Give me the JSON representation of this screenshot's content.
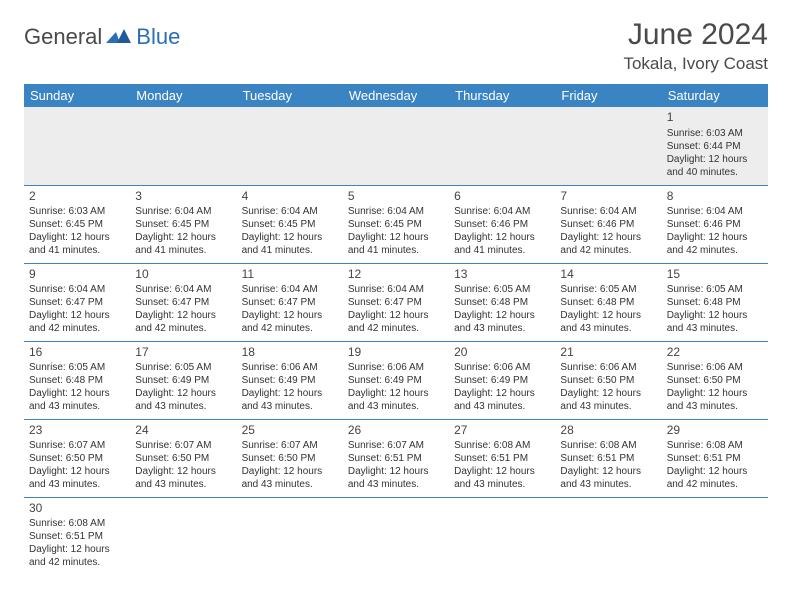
{
  "header": {
    "logo_general": "General",
    "logo_blue": "Blue",
    "month_title": "June 2024",
    "location": "Tokala, Ivory Coast"
  },
  "colors": {
    "header_bg": "#3b84c4",
    "header_text": "#ffffff",
    "cell_border": "#3b84c4",
    "empty_bg": "#ededed",
    "logo_blue": "#2a6db8",
    "text_gray": "#4a4a4a"
  },
  "weekdays": [
    "Sunday",
    "Monday",
    "Tuesday",
    "Wednesday",
    "Thursday",
    "Friday",
    "Saturday"
  ],
  "cells": [
    {
      "day": "",
      "sunrise": "",
      "sunset": "",
      "daylight": ""
    },
    {
      "day": "",
      "sunrise": "",
      "sunset": "",
      "daylight": ""
    },
    {
      "day": "",
      "sunrise": "",
      "sunset": "",
      "daylight": ""
    },
    {
      "day": "",
      "sunrise": "",
      "sunset": "",
      "daylight": ""
    },
    {
      "day": "",
      "sunrise": "",
      "sunset": "",
      "daylight": ""
    },
    {
      "day": "",
      "sunrise": "",
      "sunset": "",
      "daylight": ""
    },
    {
      "day": "1",
      "sunrise": "Sunrise: 6:03 AM",
      "sunset": "Sunset: 6:44 PM",
      "daylight": "Daylight: 12 hours and 40 minutes."
    },
    {
      "day": "2",
      "sunrise": "Sunrise: 6:03 AM",
      "sunset": "Sunset: 6:45 PM",
      "daylight": "Daylight: 12 hours and 41 minutes."
    },
    {
      "day": "3",
      "sunrise": "Sunrise: 6:04 AM",
      "sunset": "Sunset: 6:45 PM",
      "daylight": "Daylight: 12 hours and 41 minutes."
    },
    {
      "day": "4",
      "sunrise": "Sunrise: 6:04 AM",
      "sunset": "Sunset: 6:45 PM",
      "daylight": "Daylight: 12 hours and 41 minutes."
    },
    {
      "day": "5",
      "sunrise": "Sunrise: 6:04 AM",
      "sunset": "Sunset: 6:45 PM",
      "daylight": "Daylight: 12 hours and 41 minutes."
    },
    {
      "day": "6",
      "sunrise": "Sunrise: 6:04 AM",
      "sunset": "Sunset: 6:46 PM",
      "daylight": "Daylight: 12 hours and 41 minutes."
    },
    {
      "day": "7",
      "sunrise": "Sunrise: 6:04 AM",
      "sunset": "Sunset: 6:46 PM",
      "daylight": "Daylight: 12 hours and 42 minutes."
    },
    {
      "day": "8",
      "sunrise": "Sunrise: 6:04 AM",
      "sunset": "Sunset: 6:46 PM",
      "daylight": "Daylight: 12 hours and 42 minutes."
    },
    {
      "day": "9",
      "sunrise": "Sunrise: 6:04 AM",
      "sunset": "Sunset: 6:47 PM",
      "daylight": "Daylight: 12 hours and 42 minutes."
    },
    {
      "day": "10",
      "sunrise": "Sunrise: 6:04 AM",
      "sunset": "Sunset: 6:47 PM",
      "daylight": "Daylight: 12 hours and 42 minutes."
    },
    {
      "day": "11",
      "sunrise": "Sunrise: 6:04 AM",
      "sunset": "Sunset: 6:47 PM",
      "daylight": "Daylight: 12 hours and 42 minutes."
    },
    {
      "day": "12",
      "sunrise": "Sunrise: 6:04 AM",
      "sunset": "Sunset: 6:47 PM",
      "daylight": "Daylight: 12 hours and 42 minutes."
    },
    {
      "day": "13",
      "sunrise": "Sunrise: 6:05 AM",
      "sunset": "Sunset: 6:48 PM",
      "daylight": "Daylight: 12 hours and 43 minutes."
    },
    {
      "day": "14",
      "sunrise": "Sunrise: 6:05 AM",
      "sunset": "Sunset: 6:48 PM",
      "daylight": "Daylight: 12 hours and 43 minutes."
    },
    {
      "day": "15",
      "sunrise": "Sunrise: 6:05 AM",
      "sunset": "Sunset: 6:48 PM",
      "daylight": "Daylight: 12 hours and 43 minutes."
    },
    {
      "day": "16",
      "sunrise": "Sunrise: 6:05 AM",
      "sunset": "Sunset: 6:48 PM",
      "daylight": "Daylight: 12 hours and 43 minutes."
    },
    {
      "day": "17",
      "sunrise": "Sunrise: 6:05 AM",
      "sunset": "Sunset: 6:49 PM",
      "daylight": "Daylight: 12 hours and 43 minutes."
    },
    {
      "day": "18",
      "sunrise": "Sunrise: 6:06 AM",
      "sunset": "Sunset: 6:49 PM",
      "daylight": "Daylight: 12 hours and 43 minutes."
    },
    {
      "day": "19",
      "sunrise": "Sunrise: 6:06 AM",
      "sunset": "Sunset: 6:49 PM",
      "daylight": "Daylight: 12 hours and 43 minutes."
    },
    {
      "day": "20",
      "sunrise": "Sunrise: 6:06 AM",
      "sunset": "Sunset: 6:49 PM",
      "daylight": "Daylight: 12 hours and 43 minutes."
    },
    {
      "day": "21",
      "sunrise": "Sunrise: 6:06 AM",
      "sunset": "Sunset: 6:50 PM",
      "daylight": "Daylight: 12 hours and 43 minutes."
    },
    {
      "day": "22",
      "sunrise": "Sunrise: 6:06 AM",
      "sunset": "Sunset: 6:50 PM",
      "daylight": "Daylight: 12 hours and 43 minutes."
    },
    {
      "day": "23",
      "sunrise": "Sunrise: 6:07 AM",
      "sunset": "Sunset: 6:50 PM",
      "daylight": "Daylight: 12 hours and 43 minutes."
    },
    {
      "day": "24",
      "sunrise": "Sunrise: 6:07 AM",
      "sunset": "Sunset: 6:50 PM",
      "daylight": "Daylight: 12 hours and 43 minutes."
    },
    {
      "day": "25",
      "sunrise": "Sunrise: 6:07 AM",
      "sunset": "Sunset: 6:50 PM",
      "daylight": "Daylight: 12 hours and 43 minutes."
    },
    {
      "day": "26",
      "sunrise": "Sunrise: 6:07 AM",
      "sunset": "Sunset: 6:51 PM",
      "daylight": "Daylight: 12 hours and 43 minutes."
    },
    {
      "day": "27",
      "sunrise": "Sunrise: 6:08 AM",
      "sunset": "Sunset: 6:51 PM",
      "daylight": "Daylight: 12 hours and 43 minutes."
    },
    {
      "day": "28",
      "sunrise": "Sunrise: 6:08 AM",
      "sunset": "Sunset: 6:51 PM",
      "daylight": "Daylight: 12 hours and 43 minutes."
    },
    {
      "day": "29",
      "sunrise": "Sunrise: 6:08 AM",
      "sunset": "Sunset: 6:51 PM",
      "daylight": "Daylight: 12 hours and 42 minutes."
    },
    {
      "day": "30",
      "sunrise": "Sunrise: 6:08 AM",
      "sunset": "Sunset: 6:51 PM",
      "daylight": "Daylight: 12 hours and 42 minutes."
    },
    {
      "day": "",
      "sunrise": "",
      "sunset": "",
      "daylight": ""
    },
    {
      "day": "",
      "sunrise": "",
      "sunset": "",
      "daylight": ""
    },
    {
      "day": "",
      "sunrise": "",
      "sunset": "",
      "daylight": ""
    },
    {
      "day": "",
      "sunrise": "",
      "sunset": "",
      "daylight": ""
    },
    {
      "day": "",
      "sunrise": "",
      "sunset": "",
      "daylight": ""
    },
    {
      "day": "",
      "sunrise": "",
      "sunset": "",
      "daylight": ""
    }
  ]
}
